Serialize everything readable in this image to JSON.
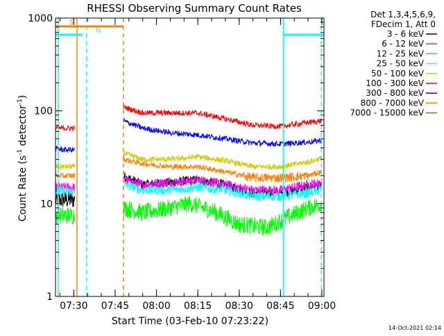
{
  "chart_data": {
    "type": "line",
    "title": "RHESSI Observing Summary Count Rates",
    "xlabel": "Start Time (03-Feb-10 07:23:22)",
    "ylabel_main": "Count Rate (s",
    "ylabel_sup1": "-1",
    "ylabel_mid": " detector",
    "ylabel_sup2": "-1",
    "ylabel_end": ")",
    "footer": "14-Oct-2021 02:14",
    "y_scale": "log",
    "ylim": [
      1,
      1000
    ],
    "xlim": [
      "07:23:22",
      "09:00:46"
    ],
    "x_ticks": [
      "07:30",
      "07:45",
      "08:00",
      "08:15",
      "08:30",
      "08:45",
      "09:00"
    ],
    "y_ticks": [
      "1",
      "10",
      "100",
      "1000"
    ],
    "legend_header": [
      "Det 1,3,4,5,6,9,",
      "FDecim 1, Att 0"
    ],
    "legend_position": "right",
    "gaps": [
      [
        "07:30:30",
        "07:48:00"
      ]
    ],
    "series": [
      {
        "name": "3 - 6 keV",
        "color": "#000000",
        "pre_gap": [
          [
            "07:23:22",
            11
          ],
          [
            "07:27:00",
            11
          ],
          [
            "07:30:20",
            11
          ]
        ],
        "values": [
          [
            "07:48:00",
            20
          ],
          [
            "07:55:00",
            16
          ],
          [
            "08:05:00",
            17
          ],
          [
            "08:15:00",
            18
          ],
          [
            "08:25:00",
            16
          ],
          [
            "08:35:00",
            13
          ],
          [
            "08:45:00",
            13
          ],
          [
            "08:55:00",
            15
          ],
          [
            "09:00:00",
            16
          ]
        ]
      },
      {
        "name": "6 - 12 keV",
        "color": "#ff00ff",
        "pre_gap": [
          [
            "07:23:22",
            15
          ],
          [
            "07:27:00",
            15
          ],
          [
            "07:30:20",
            15
          ]
        ],
        "values": [
          [
            "07:48:00",
            18
          ],
          [
            "07:55:00",
            16
          ],
          [
            "08:05:00",
            17
          ],
          [
            "08:15:00",
            18
          ],
          [
            "08:25:00",
            16
          ],
          [
            "08:35:00",
            14
          ],
          [
            "08:45:00",
            14
          ],
          [
            "08:55:00",
            16
          ],
          [
            "09:00:00",
            17
          ]
        ]
      },
      {
        "name": "12 - 25 keV",
        "color": "#00ff00",
        "pre_gap": [
          [
            "07:23:22",
            7.5
          ],
          [
            "07:27:00",
            7.5
          ],
          [
            "07:30:20",
            7.5
          ]
        ],
        "values": [
          [
            "07:48:00",
            9
          ],
          [
            "07:55:00",
            8
          ],
          [
            "08:05:00",
            9
          ],
          [
            "08:12:00",
            10
          ],
          [
            "08:20:00",
            8.5
          ],
          [
            "08:30:00",
            6
          ],
          [
            "08:40:00",
            5.5
          ],
          [
            "08:47:00",
            7
          ],
          [
            "08:55:00",
            9
          ],
          [
            "09:00:00",
            10
          ]
        ]
      },
      {
        "name": "25 - 50 keV",
        "color": "#00ffff",
        "pre_gap": [
          [
            "07:23:22",
            13.5
          ],
          [
            "07:27:00",
            13.5
          ],
          [
            "07:30:20",
            13.5
          ]
        ],
        "values": [
          [
            "07:48:00",
            16
          ],
          [
            "07:55:00",
            14
          ],
          [
            "08:05:00",
            14
          ],
          [
            "08:15:00",
            15
          ],
          [
            "08:25:00",
            14
          ],
          [
            "08:35:00",
            12
          ],
          [
            "08:45:00",
            12
          ],
          [
            "08:55:00",
            13
          ],
          [
            "09:00:00",
            14
          ]
        ]
      },
      {
        "name": "50 - 100 keV",
        "color": "#cccc00",
        "pre_gap": [
          [
            "07:23:22",
            25
          ],
          [
            "07:27:00",
            25
          ],
          [
            "07:30:20",
            25
          ]
        ],
        "values": [
          [
            "07:48:00",
            35
          ],
          [
            "07:55:00",
            30
          ],
          [
            "08:05:00",
            30
          ],
          [
            "08:15:00",
            32
          ],
          [
            "08:25:00",
            29
          ],
          [
            "08:35:00",
            25
          ],
          [
            "08:45:00",
            25
          ],
          [
            "08:55:00",
            28
          ],
          [
            "09:00:00",
            31
          ]
        ]
      },
      {
        "name": "100 - 300 keV",
        "color": "#ff0000",
        "pre_gap": [
          [
            "07:23:22",
            65
          ],
          [
            "07:27:00",
            65
          ],
          [
            "07:30:20",
            65
          ]
        ],
        "values": [
          [
            "07:48:00",
            110
          ],
          [
            "07:55:00",
            95
          ],
          [
            "08:05:00",
            95
          ],
          [
            "08:15:00",
            95
          ],
          [
            "08:25:00",
            82
          ],
          [
            "08:35:00",
            70
          ],
          [
            "08:45:00",
            68
          ],
          [
            "08:55:00",
            75
          ],
          [
            "09:00:00",
            78
          ]
        ]
      },
      {
        "name": "300 - 800 keV",
        "color": "#0000ff",
        "pre_gap": [
          [
            "07:23:22",
            39
          ],
          [
            "07:27:00",
            38
          ],
          [
            "07:30:20",
            38
          ]
        ],
        "values": [
          [
            "07:48:00",
            78
          ],
          [
            "07:55:00",
            65
          ],
          [
            "08:05:00",
            58
          ],
          [
            "08:15:00",
            55
          ],
          [
            "08:25:00",
            50
          ],
          [
            "08:35:00",
            45
          ],
          [
            "08:45:00",
            44
          ],
          [
            "08:55:00",
            46
          ],
          [
            "09:00:00",
            48
          ]
        ]
      },
      {
        "name": "800 - 7000 keV",
        "color": "#ff8000",
        "pre_gap": [
          [
            "07:23:22",
            20
          ],
          [
            "07:27:00",
            20
          ],
          [
            "07:30:20",
            20
          ]
        ],
        "values": [
          [
            "07:48:00",
            30
          ],
          [
            "07:55:00",
            27
          ],
          [
            "08:05:00",
            25
          ],
          [
            "08:15:00",
            25
          ],
          [
            "08:25:00",
            22
          ],
          [
            "08:35:00",
            19
          ],
          [
            "08:45:00",
            19
          ],
          [
            "08:55:00",
            20
          ],
          [
            "09:00:00",
            22
          ]
        ]
      },
      {
        "name": "7000 - 15000 keV",
        "color": "#808000",
        "pre_gap": [],
        "values": []
      }
    ],
    "flags": [
      {
        "label": "S",
        "color": "#ff8000",
        "from": "07:23:22",
        "to": "07:48:00",
        "level": 0.97
      },
      {
        "label": "N",
        "color": "#00ffff",
        "from": "07:23:22",
        "to": "07:33:10",
        "level": 0.94
      },
      {
        "label": "",
        "color": "#00ffff",
        "from": "08:46:00",
        "to": "09:00:46",
        "level": 0.94
      }
    ],
    "vlines": [
      {
        "time": "07:24:20",
        "color": "#00ffff",
        "style": "solid"
      },
      {
        "time": "07:31:10",
        "color": "#ff8000",
        "style": "solid"
      },
      {
        "time": "07:34:40",
        "color": "#00ffff",
        "style": "dashed"
      },
      {
        "time": "07:48:00",
        "color": "#ff8000",
        "style": "dashed"
      },
      {
        "time": "08:46:00",
        "color": "#00ffff",
        "style": "solid"
      },
      {
        "time": "08:59:50",
        "color": "#00ffff",
        "style": "dashed"
      }
    ]
  }
}
